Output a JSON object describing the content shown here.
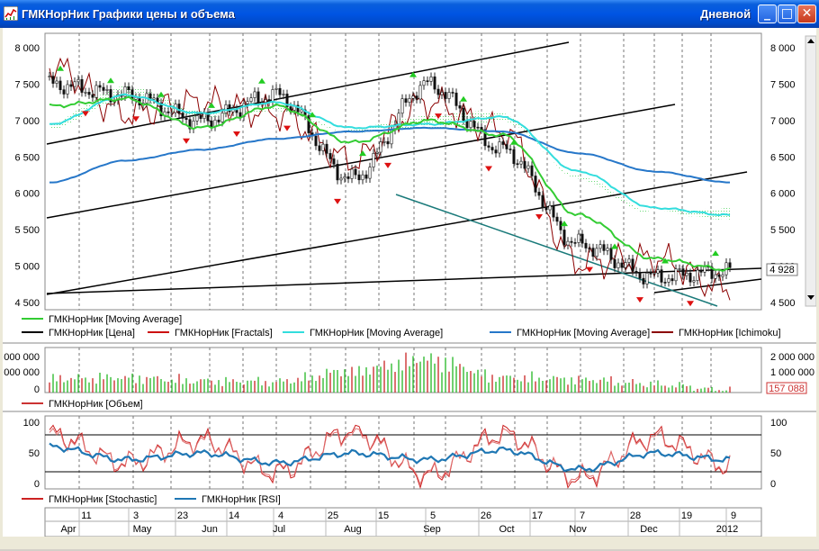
{
  "window": {
    "title": "ГМКНорНик Графики цены и объема",
    "period": "Дневной",
    "minimize_glyph": "_",
    "maximize_glyph": "□",
    "close_glyph": "✕"
  },
  "colors": {
    "price_up": "#2a2a2a",
    "ma_green": "#33cc33",
    "ma_cyan": "#33dddd",
    "ma_blue": "#2677c9",
    "ichimoku_red": "#8b0000",
    "fractal_red": "#dd1111",
    "fractal_green": "#22cc22",
    "trend_black": "#000000",
    "trend_teal": "#1a7a7a",
    "volume_green": "#33bb33",
    "volume_red": "#cc3333",
    "stoch_red": "#cc2222",
    "rsi_blue": "#1f77b4",
    "last_price_color": "#000000"
  },
  "price_panel": {
    "y_ticks": [
      "8 000",
      "7 500",
      "7 000",
      "6 500",
      "6 000",
      "5 500",
      "5 000",
      "4 500"
    ],
    "last_price": "4 928",
    "legend": [
      {
        "label": "ГМКНорНик [Moving Average]",
        "color": "#33cc33"
      },
      {
        "label": "ГМКНорНик [Цена]",
        "color": "#000000"
      },
      {
        "label": "ГМКНорНик [Fractals]",
        "color": "#cc1111"
      },
      {
        "label": "ГМКНорНик [Moving Average]",
        "color": "#33dddd"
      },
      {
        "label": "ГМКНорНик [Moving Average]",
        "color": "#2677c9"
      },
      {
        "label": "ГМКНорНик [Ichimoku]",
        "color": "#8b0000"
      }
    ]
  },
  "volume_panel": {
    "left_ticks": [
      "000 000",
      "000 000",
      "0"
    ],
    "right_ticks": [
      "2 000 000",
      "1 000 000",
      "0"
    ],
    "last_volume": "157 088",
    "legend": [
      {
        "label": "ГМКНорНик [Объем]",
        "color": "#cc3333"
      }
    ]
  },
  "osc_panel": {
    "ticks": [
      "100",
      "50",
      "0"
    ],
    "legend": [
      {
        "label": "ГМКНорНик [Stochastic]",
        "color": "#cc2222"
      },
      {
        "label": "ГМКНорНик [RSI]",
        "color": "#1f77b4"
      }
    ]
  },
  "x_axis": {
    "day_labels": [
      "11",
      "3",
      "23",
      "14",
      "4",
      "25",
      "15",
      "5",
      "26",
      "17",
      "7",
      "28",
      "19",
      "9"
    ],
    "month_labels": [
      "Apr",
      "May",
      "Jun",
      "Jul",
      "Aug",
      "Sep",
      "Oct",
      "Nov",
      "Dec",
      "2012"
    ]
  },
  "chart_data": {
    "type": "line",
    "title": "ГМКНорНик Графики цены и объема",
    "ylim": [
      4400,
      8200
    ],
    "x": [
      "Apr",
      "May",
      "Jun",
      "Jul",
      "Aug",
      "Sep",
      "Oct",
      "Nov",
      "Dec",
      "2012"
    ],
    "series": [
      {
        "name": "ГМКНорНик [Цена]",
        "values": [
          7500,
          7350,
          7000,
          7350,
          6200,
          7500,
          6600,
          5300,
          4850,
          4928
        ]
      },
      {
        "name": "ГМКНорНик [Moving Average]",
        "values": [
          7200,
          7300,
          6900,
          7200,
          6700,
          7000,
          6800,
          5700,
          5100,
          4950
        ]
      },
      {
        "name": "ГМКНорНик [Moving Average]",
        "values": [
          6950,
          7350,
          7100,
          7250,
          6900,
          6950,
          7050,
          6300,
          5800,
          5700
        ]
      },
      {
        "name": "ГМКНорНик [Moving Average]",
        "values": [
          6150,
          6450,
          6600,
          6750,
          6850,
          6900,
          6850,
          6550,
          6300,
          6150
        ]
      }
    ],
    "volume": [
      820000,
      900000,
      700000,
      650000,
      1300000,
      2000000,
      900000,
      800000,
      500000,
      157088
    ],
    "stochastic": [
      85,
      40,
      75,
      25,
      90,
      20,
      85,
      15,
      80,
      35
    ],
    "rsi": [
      65,
      45,
      55,
      40,
      55,
      45,
      60,
      30,
      55,
      45
    ],
    "stochastic_levels": [
      80,
      20
    ]
  }
}
